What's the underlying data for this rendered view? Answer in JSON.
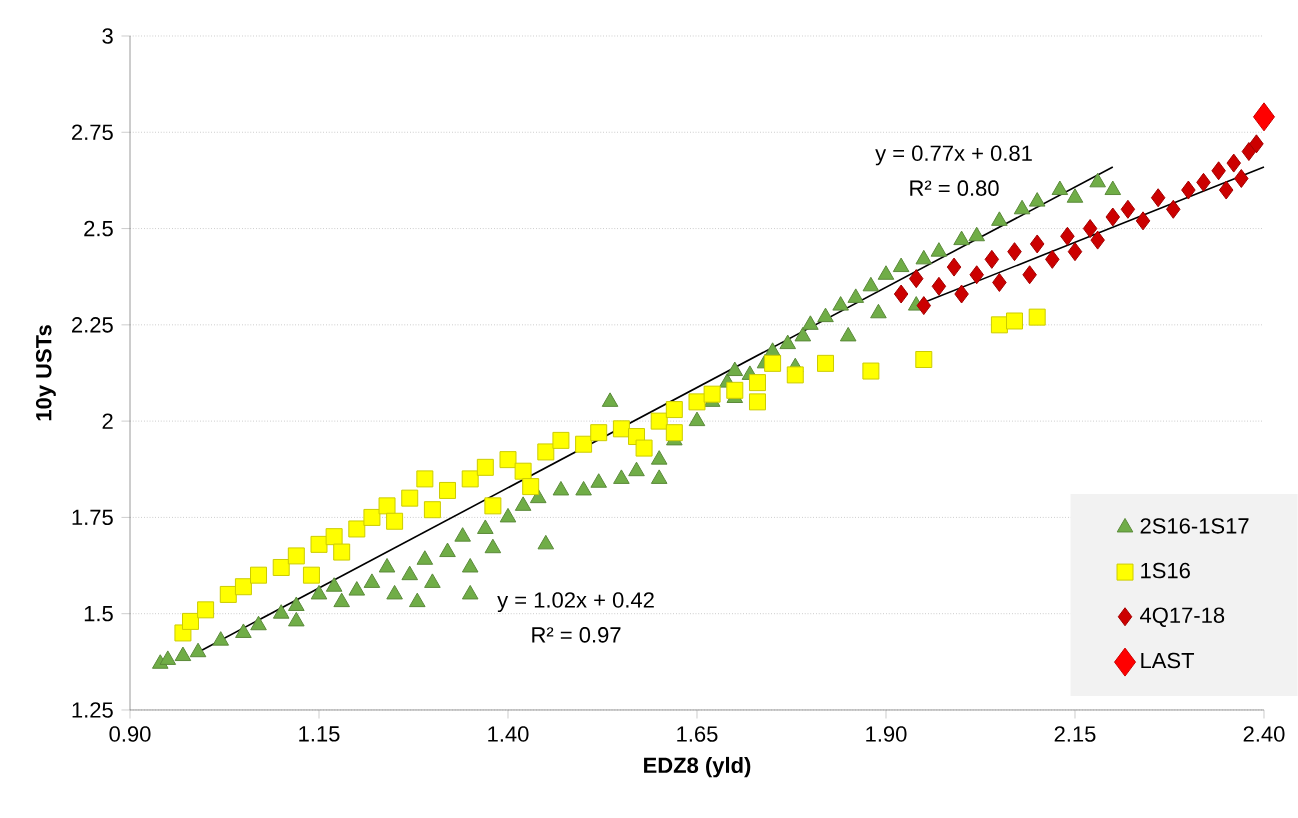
{
  "chart_data": {
    "type": "scatter",
    "xlabel": "EDZ8 (yld)",
    "ylabel": "10y USTs",
    "xlim": [
      0.9,
      2.4
    ],
    "ylim": [
      1.25,
      3
    ],
    "xticks": [
      {
        "value": 0.9,
        "label": "0.90"
      },
      {
        "value": 1.15,
        "label": "1.15"
      },
      {
        "value": 1.4,
        "label": "1.40"
      },
      {
        "value": 1.65,
        "label": "1.65"
      },
      {
        "value": 1.9,
        "label": "1.90"
      },
      {
        "value": 2.15,
        "label": "2.15"
      },
      {
        "value": 2.4,
        "label": "2.40"
      }
    ],
    "yticks": [
      1.25,
      1.5,
      1.75,
      2,
      2.25,
      2.5,
      2.75,
      3
    ],
    "grid": "y",
    "legend": "bottom right",
    "annotations": [
      "y = 0.77x + 0.81",
      "R² = 0.80",
      "y = 1.02x + 0.42",
      "R² = 0.97"
    ],
    "series": [
      {
        "name": "2S16-1S17",
        "color": "#70ad47",
        "marker": "triangle",
        "x": [
          0.94,
          0.95,
          0.97,
          0.99,
          1.02,
          1.05,
          1.07,
          1.1,
          1.12,
          1.12,
          1.15,
          1.17,
          1.18,
          1.2,
          1.22,
          1.24,
          1.25,
          1.27,
          1.28,
          1.29,
          1.3,
          1.32,
          1.34,
          1.35,
          1.35,
          1.37,
          1.38,
          1.4,
          1.42,
          1.44,
          1.45,
          1.47,
          1.5,
          1.52,
          1.535,
          1.55,
          1.57,
          1.6,
          1.6,
          1.62,
          1.65,
          1.67,
          1.69,
          1.7,
          1.7,
          1.72,
          1.74,
          1.75,
          1.77,
          1.78,
          1.79,
          1.8,
          1.82,
          1.84,
          1.85,
          1.86,
          1.88,
          1.89,
          1.9,
          1.92,
          1.94,
          1.95,
          1.97,
          2.0,
          2.02,
          2.05,
          2.08,
          2.1,
          2.13,
          2.15,
          2.18,
          2.2
        ],
        "values": [
          1.37,
          1.38,
          1.39,
          1.4,
          1.43,
          1.45,
          1.47,
          1.5,
          1.52,
          1.48,
          1.55,
          1.57,
          1.53,
          1.56,
          1.58,
          1.62,
          1.55,
          1.6,
          1.53,
          1.64,
          1.58,
          1.66,
          1.7,
          1.62,
          1.55,
          1.72,
          1.67,
          1.75,
          1.78,
          1.8,
          1.68,
          1.82,
          1.82,
          1.84,
          2.05,
          1.85,
          1.87,
          1.9,
          1.85,
          1.95,
          2.0,
          2.05,
          2.1,
          2.13,
          2.06,
          2.12,
          2.15,
          2.18,
          2.2,
          2.14,
          2.22,
          2.25,
          2.27,
          2.3,
          2.22,
          2.32,
          2.35,
          2.28,
          2.38,
          2.4,
          2.3,
          2.42,
          2.44,
          2.47,
          2.48,
          2.52,
          2.55,
          2.57,
          2.6,
          2.58,
          2.62,
          2.6
        ]
      },
      {
        "name": "1S16",
        "color": "#ffff00",
        "marker": "square",
        "x": [
          0.97,
          0.98,
          1.0,
          1.03,
          1.05,
          1.07,
          1.1,
          1.12,
          1.14,
          1.15,
          1.17,
          1.18,
          1.2,
          1.22,
          1.24,
          1.25,
          1.27,
          1.29,
          1.3,
          1.32,
          1.35,
          1.37,
          1.38,
          1.4,
          1.42,
          1.43,
          1.45,
          1.47,
          1.5,
          1.52,
          1.55,
          1.57,
          1.58,
          1.6,
          1.62,
          1.62,
          1.65,
          1.67,
          1.7,
          1.73,
          1.73,
          1.75,
          1.78,
          1.82,
          1.88,
          1.95,
          2.05,
          2.07,
          2.1
        ],
        "values": [
          1.45,
          1.48,
          1.51,
          1.55,
          1.57,
          1.6,
          1.62,
          1.65,
          1.6,
          1.68,
          1.7,
          1.66,
          1.72,
          1.75,
          1.78,
          1.74,
          1.8,
          1.85,
          1.77,
          1.82,
          1.85,
          1.88,
          1.78,
          1.9,
          1.87,
          1.83,
          1.92,
          1.95,
          1.94,
          1.97,
          1.98,
          1.96,
          1.93,
          2.0,
          2.03,
          1.97,
          2.05,
          2.07,
          2.08,
          2.1,
          2.05,
          2.15,
          2.12,
          2.15,
          2.13,
          2.16,
          2.25,
          2.26,
          2.27
        ]
      },
      {
        "name": "4Q17-18",
        "color": "#cc0000",
        "marker": "diamond",
        "x": [
          1.92,
          1.94,
          1.95,
          1.97,
          1.99,
          2.0,
          2.02,
          2.04,
          2.05,
          2.07,
          2.09,
          2.1,
          2.12,
          2.14,
          2.15,
          2.17,
          2.18,
          2.2,
          2.22,
          2.24,
          2.26,
          2.28,
          2.3,
          2.32,
          2.34,
          2.35,
          2.36,
          2.37,
          2.38,
          2.39
        ],
        "values": [
          2.33,
          2.37,
          2.3,
          2.35,
          2.4,
          2.33,
          2.38,
          2.42,
          2.36,
          2.44,
          2.38,
          2.46,
          2.42,
          2.48,
          2.44,
          2.5,
          2.47,
          2.53,
          2.55,
          2.52,
          2.58,
          2.55,
          2.6,
          2.62,
          2.65,
          2.6,
          2.67,
          2.63,
          2.7,
          2.72
        ]
      },
      {
        "name": "LAST",
        "color": "#ff0000",
        "marker": "diamond",
        "x": [
          2.4
        ],
        "values": [
          2.79
        ]
      },
      {
        "type": "line",
        "color": "#000000",
        "marker": "none",
        "line_style": "solid",
        "x": [
          1.94,
          2.4
        ],
        "values": [
          2.3,
          2.66
        ]
      },
      {
        "type": "line",
        "color": "#000000",
        "marker": "none",
        "line_style": "solid",
        "x": [
          0.99,
          2.2
        ],
        "values": [
          1.4,
          2.66
        ]
      }
    ]
  }
}
